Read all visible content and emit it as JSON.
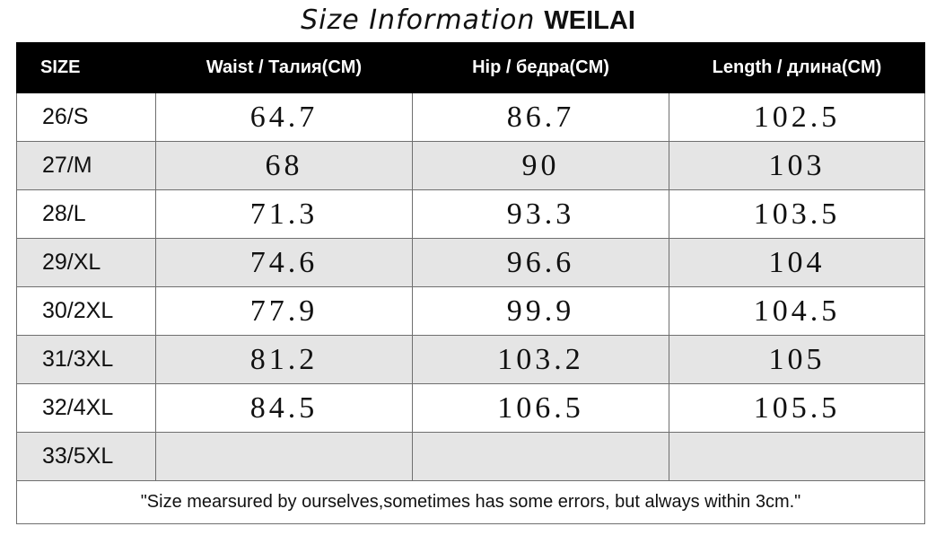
{
  "title": {
    "script_text": "Size Information",
    "brand": "WEILAI"
  },
  "table": {
    "headers": [
      "SIZE",
      "Waist / Талия(CM)",
      "Hip / бедра(CM)",
      "Length / длина(CM)"
    ],
    "rows": [
      {
        "size": "26/S",
        "waist": "64.7",
        "hip": "86.7",
        "length": "102.5"
      },
      {
        "size": "27/M",
        "waist": "68",
        "hip": "90",
        "length": "103"
      },
      {
        "size": "28/L",
        "waist": "71.3",
        "hip": "93.3",
        "length": "103.5"
      },
      {
        "size": "29/XL",
        "waist": "74.6",
        "hip": "96.6",
        "length": "104"
      },
      {
        "size": "30/2XL",
        "waist": "77.9",
        "hip": "99.9",
        "length": "104.5"
      },
      {
        "size": "31/3XL",
        "waist": "81.2",
        "hip": "103.2",
        "length": "105"
      },
      {
        "size": "32/4XL",
        "waist": "84.5",
        "hip": "106.5",
        "length": "105.5"
      },
      {
        "size": "33/5XL",
        "waist": "",
        "hip": "",
        "length": ""
      }
    ],
    "note": "\"Size mearsured by ourselves,sometimes has some errors, but always within 3cm.\""
  },
  "colors": {
    "header_bg": "#000000",
    "header_text": "#ffffff",
    "shaded_row": "#e5e5e5",
    "plain_row": "#ffffff",
    "border": "#6f6f6f"
  }
}
